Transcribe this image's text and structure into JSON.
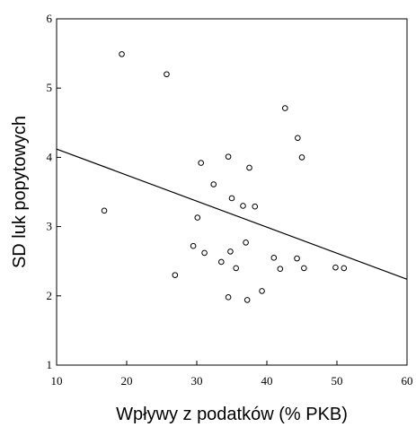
{
  "chart_data": {
    "type": "scatter",
    "title": "",
    "xlabel": "Wpływy z podatków (% PKB)",
    "ylabel": "SD luk popytowych",
    "xlim": [
      10,
      60
    ],
    "ylim": [
      1,
      6
    ],
    "xticks": [
      10,
      20,
      30,
      40,
      50,
      60
    ],
    "yticks": [
      1,
      2,
      3,
      4,
      5,
      6
    ],
    "grid": false,
    "legend": "none",
    "marker": "open-circle",
    "points": [
      [
        19.3,
        5.49
      ],
      [
        25.7,
        5.2
      ],
      [
        16.8,
        3.23
      ],
      [
        42.6,
        4.71
      ],
      [
        44.4,
        4.28
      ],
      [
        45.0,
        4.0
      ],
      [
        30.6,
        3.92
      ],
      [
        34.5,
        4.01
      ],
      [
        37.5,
        3.85
      ],
      [
        32.4,
        3.61
      ],
      [
        35.0,
        3.41
      ],
      [
        36.6,
        3.3
      ],
      [
        38.3,
        3.29
      ],
      [
        30.1,
        3.13
      ],
      [
        29.5,
        2.72
      ],
      [
        31.1,
        2.62
      ],
      [
        34.8,
        2.64
      ],
      [
        37.0,
        2.77
      ],
      [
        33.5,
        2.49
      ],
      [
        35.6,
        2.4
      ],
      [
        41.0,
        2.55
      ],
      [
        41.9,
        2.39
      ],
      [
        44.3,
        2.54
      ],
      [
        45.3,
        2.4
      ],
      [
        49.8,
        2.41
      ],
      [
        51.0,
        2.4
      ],
      [
        26.9,
        2.3
      ],
      [
        34.5,
        1.98
      ],
      [
        39.3,
        2.07
      ],
      [
        37.2,
        1.94
      ]
    ],
    "trendline": {
      "x": [
        10,
        60
      ],
      "y": [
        4.12,
        2.24
      ]
    },
    "colors": {
      "marker": "#000000",
      "line": "#000000",
      "axis": "#000000"
    }
  }
}
